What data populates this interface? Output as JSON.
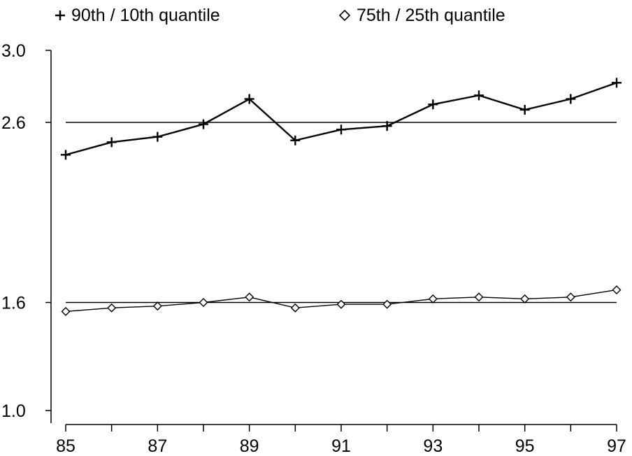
{
  "chart_data": {
    "type": "line",
    "title": "",
    "xlabel": "",
    "ylabel": "",
    "x": [
      85,
      86,
      87,
      88,
      89,
      90,
      91,
      92,
      93,
      94,
      95,
      96,
      97
    ],
    "x_tick_labels": [
      "85",
      "87",
      "89",
      "91",
      "93",
      "95",
      "97"
    ],
    "y_tick_labels": [
      "1.0",
      "1.6",
      "2.6",
      "3.0"
    ],
    "y_ticks": [
      1.0,
      1.6,
      2.6,
      3.0
    ],
    "xlim": [
      85,
      97
    ],
    "ylim": [
      1.0,
      3.0
    ],
    "legend_position": "top",
    "series": [
      {
        "name": "90th / 10th quantile",
        "marker": "plus",
        "values": [
          2.42,
          2.49,
          2.52,
          2.59,
          2.73,
          2.5,
          2.56,
          2.58,
          2.7,
          2.75,
          2.67,
          2.73,
          2.82
        ],
        "reference_line": 2.6
      },
      {
        "name": "75th / 25th quantile",
        "marker": "diamond",
        "values": [
          1.55,
          1.57,
          1.58,
          1.6,
          1.63,
          1.57,
          1.59,
          1.59,
          1.62,
          1.63,
          1.62,
          1.63,
          1.67
        ],
        "reference_line": 1.6
      }
    ],
    "colors": {
      "line": "#000000",
      "background": "#ffffff"
    }
  }
}
